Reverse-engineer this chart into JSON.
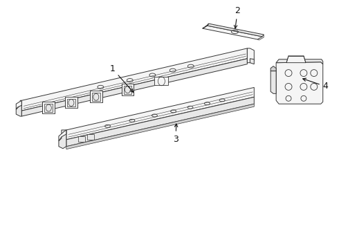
{
  "bg_color": "#ffffff",
  "lc": "#333333",
  "fc_light": "#f5f5f5",
  "fc_mid": "#e8e8e8",
  "fc_dark": "#d0d0d0",
  "fc_darker": "#b8b8b8",
  "lw": 0.7,
  "lw_heavy": 1.0
}
